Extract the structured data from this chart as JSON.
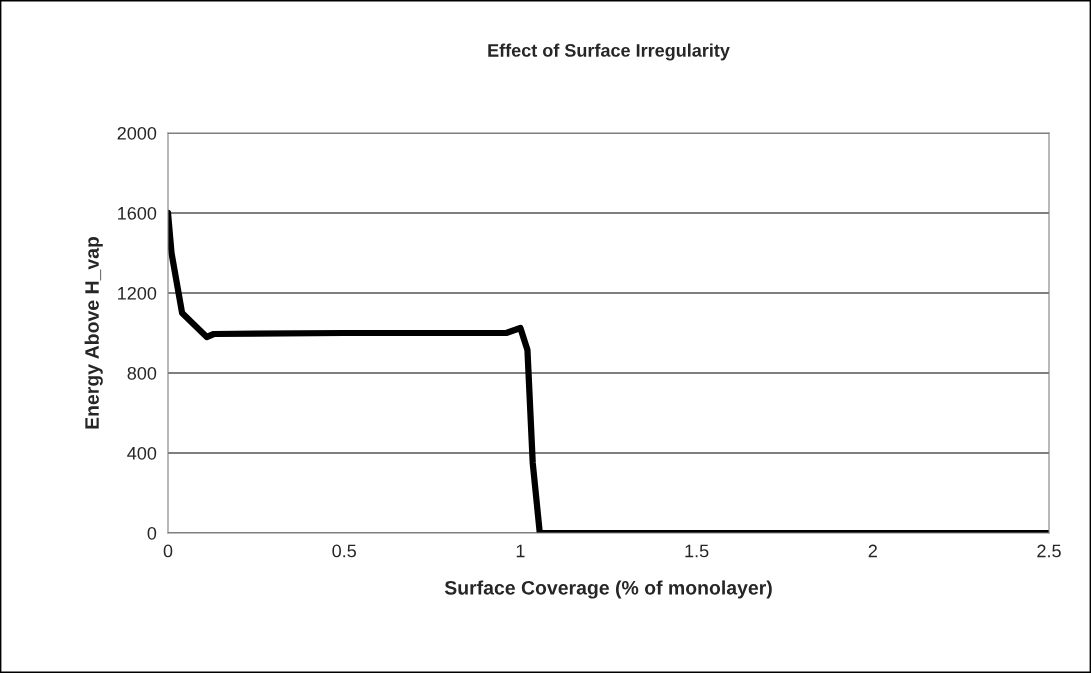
{
  "chart_data": {
    "type": "line",
    "title": "Effect of Surface Irregularity",
    "xlabel": "Surface Coverage (% of monolayer)",
    "ylabel": "Energy Above H_vap",
    "x": [
      0,
      0.01,
      0.04,
      0.11,
      0.13,
      0.5,
      0.96,
      1.0,
      1.02,
      1.035,
      1.055,
      1.5,
      2.0,
      2.5
    ],
    "series": [
      {
        "color": "#000000",
        "values": [
          1600,
          1400,
          1100,
          980,
          995,
          1000,
          1000,
          1025,
          915,
          350,
          0,
          0,
          0,
          0
        ]
      }
    ],
    "xlim": [
      0,
      2.5
    ],
    "xticks": [
      0,
      0.5,
      1,
      1.5,
      2,
      2.5
    ],
    "ylim": [
      0,
      2000
    ],
    "yticks": [
      0,
      400,
      800,
      1200,
      1600,
      2000
    ],
    "grid": "y",
    "marker": "none",
    "line_style": "solid"
  }
}
